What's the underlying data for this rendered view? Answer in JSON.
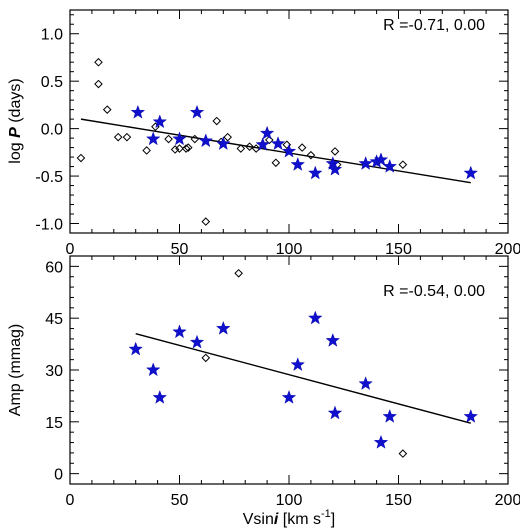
{
  "chart_data": [
    {
      "type": "scatter",
      "xlim": [
        0,
        200
      ],
      "ylim": [
        -1.1,
        1.25
      ],
      "xticks": [
        0,
        50,
        100,
        150,
        200
      ],
      "yticks": [
        -1.0,
        -0.5,
        0.0,
        0.5,
        1.0
      ],
      "xtick_labels": [
        "0",
        "50",
        "100",
        "150",
        "200"
      ],
      "ytick_labels": [
        "-1.0",
        "-0.5",
        "0.0",
        "0.5",
        "1.0"
      ],
      "ylabel_prefix": "log ",
      "ylabel_var": "P",
      "ylabel_suffix": " (days)",
      "annotation": "R =-0.71, 0.00",
      "fit_line": {
        "x": [
          5,
          183
        ],
        "y": [
          0.1,
          -0.57
        ]
      },
      "series": [
        {
          "marker": "diamond",
          "color": "#000000",
          "x": [
            5,
            13,
            13,
            17,
            22,
            26,
            35,
            39,
            45,
            48,
            50,
            53,
            54,
            57,
            62,
            67,
            69,
            72,
            78,
            82,
            85,
            91,
            94,
            99,
            106,
            110,
            121,
            122,
            152
          ],
          "y": [
            -0.31,
            0.7,
            0.47,
            0.2,
            -0.09,
            -0.09,
            -0.23,
            0.02,
            -0.11,
            -0.22,
            -0.21,
            -0.21,
            -0.2,
            -0.11,
            -0.98,
            0.08,
            -0.14,
            -0.09,
            -0.21,
            -0.19,
            -0.21,
            -0.12,
            -0.36,
            -0.17,
            -0.2,
            -0.28,
            -0.24,
            -0.38,
            -0.38
          ]
        },
        {
          "marker": "star",
          "color": "#1010cc",
          "x": [
            31,
            38,
            41,
            50,
            58,
            62,
            70,
            88,
            90,
            95,
            100,
            104,
            112,
            120,
            121,
            135,
            140,
            142,
            146,
            183
          ],
          "y": [
            0.17,
            -0.11,
            0.07,
            -0.11,
            0.17,
            -0.13,
            -0.16,
            -0.17,
            -0.05,
            -0.16,
            -0.24,
            -0.38,
            -0.47,
            -0.37,
            -0.43,
            -0.37,
            -0.35,
            -0.33,
            -0.4,
            -0.47
          ]
        }
      ]
    },
    {
      "type": "scatter",
      "xlim": [
        0,
        200
      ],
      "ylim": [
        -3,
        63
      ],
      "xticks": [
        0,
        50,
        100,
        150,
        200
      ],
      "yticks": [
        0,
        15,
        30,
        45,
        60
      ],
      "xtick_labels": [
        "0",
        "50",
        "100",
        "150",
        "200"
      ],
      "ytick_labels": [
        "0",
        "15",
        "30",
        "45",
        "60"
      ],
      "ylabel": "Amp (mmag)",
      "xlabel_prefix": "Vsin",
      "xlabel_var": "i",
      "xlabel_suffix": " [km s",
      "xlabel_sup": "-1",
      "xlabel_close": "]",
      "annotation": "R =-0.54, 0.00",
      "fit_line": {
        "x": [
          30,
          183
        ],
        "y": [
          40.5,
          14.6
        ]
      },
      "series": [
        {
          "marker": "diamond",
          "color": "#000000",
          "x": [
            62,
            77,
            152
          ],
          "y": [
            33.5,
            58,
            5.8
          ]
        },
        {
          "marker": "star",
          "color": "#1010cc",
          "x": [
            30,
            38,
            41,
            50,
            58,
            70,
            100,
            104,
            112,
            120,
            121,
            135,
            142,
            146,
            183
          ],
          "y": [
            36,
            30,
            22,
            41,
            38,
            42,
            22,
            31.5,
            45,
            38.5,
            17.5,
            26,
            9,
            16.5,
            16.5
          ]
        }
      ]
    }
  ]
}
